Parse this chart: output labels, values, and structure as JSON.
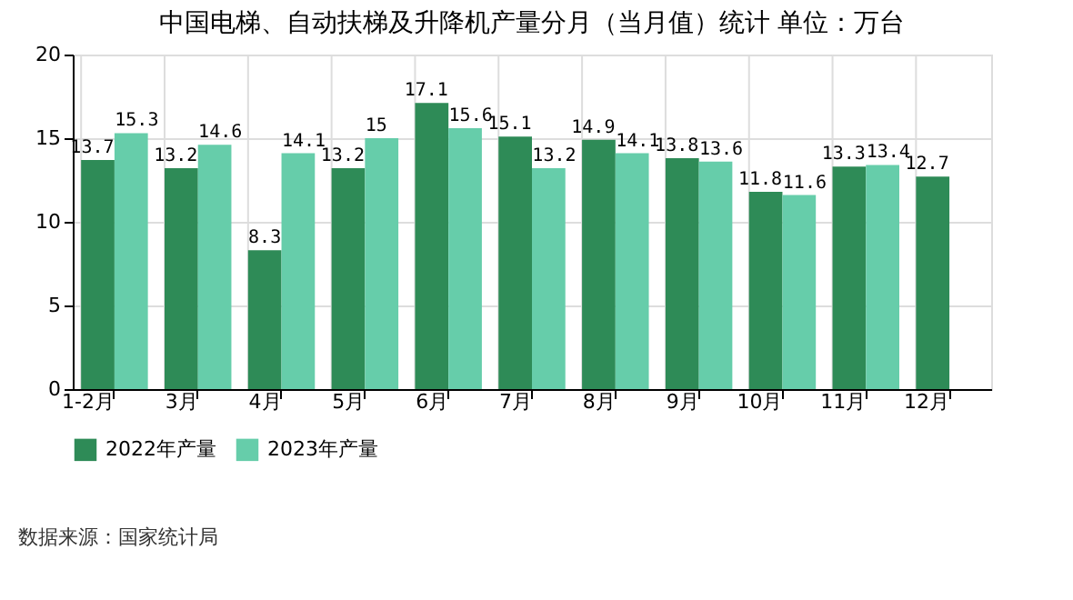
{
  "chart_data": {
    "type": "bar",
    "title": "中国电梯、自动扶梯及升降机产量分月（当月值）统计 单位：万台",
    "categories": [
      "1-2月",
      "3月",
      "4月",
      "5月",
      "6月",
      "7月",
      "8月",
      "9月",
      "10月",
      "11月",
      "12月"
    ],
    "series": [
      {
        "name": "2022年产量",
        "color": "#2e8b57",
        "values": [
          13.7,
          13.2,
          8.3,
          13.2,
          17.1,
          15.1,
          14.9,
          13.8,
          11.8,
          13.3,
          12.7
        ]
      },
      {
        "name": "2023年产量",
        "color": "#66cdaa",
        "values": [
          15.3,
          14.6,
          14.1,
          15,
          15.6,
          13.2,
          14.1,
          13.6,
          11.6,
          13.4,
          null
        ]
      }
    ],
    "ylim": [
      0,
      20
    ],
    "yticks": [
      0,
      5,
      10,
      15,
      20
    ],
    "grid": true,
    "legend": "bottom",
    "data_labels": true,
    "annotations": [
      "数据来源：国家统计局"
    ]
  }
}
